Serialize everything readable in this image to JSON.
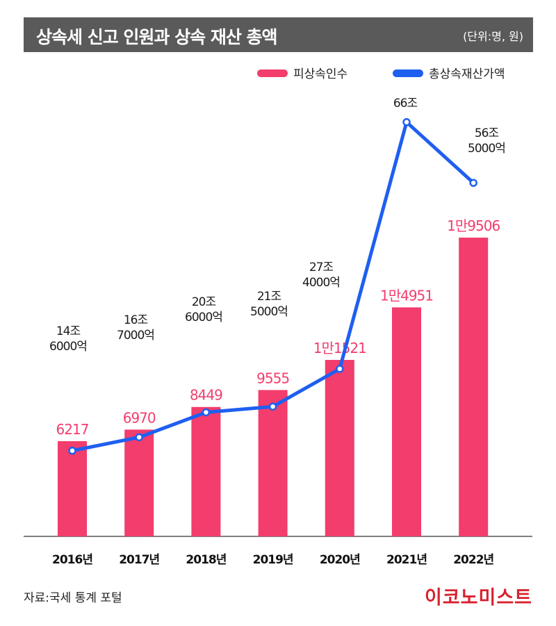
{
  "header": {
    "title": "상속세 신고 인원과 상속 재산 총액",
    "unit": "(단위:명, 원)"
  },
  "legend": [
    {
      "label": "피상속인수",
      "color": "#f23d6d"
    },
    {
      "label": "총상속재산가액",
      "color": "#1f5ff0"
    }
  ],
  "chart_data": {
    "type": "bar",
    "categories": [
      "2016년",
      "2017년",
      "2018년",
      "2019년",
      "2020년",
      "2021년",
      "2022년"
    ],
    "series": [
      {
        "name": "피상속인수",
        "type": "bar",
        "color": "#f23d6d",
        "values": [
          6217,
          6970,
          8449,
          9555,
          11521,
          14951,
          19506
        ],
        "labels": [
          "6217",
          "6970",
          "8449",
          "9555",
          "1만1521",
          "1만4951",
          "1만9506"
        ]
      },
      {
        "name": "총상속재산가액",
        "type": "line",
        "color": "#1f5ff0",
        "values_trillion_won": [
          14.6,
          16.7,
          20.6,
          21.5,
          27.4,
          66,
          56.5
        ],
        "labels": [
          [
            "14조",
            "6000억"
          ],
          [
            "16조",
            "7000억"
          ],
          [
            "20조",
            "6000억"
          ],
          [
            "21조",
            "5000억"
          ],
          [
            "27조",
            "4000억"
          ],
          [
            "66조"
          ],
          [
            "56조",
            "5000억"
          ]
        ]
      }
    ],
    "bar_ylim": [
      0,
      28000
    ],
    "line_ylim": [
      0,
      80
    ],
    "grid": false,
    "legend_position": "top-right"
  },
  "footer": {
    "source": "자료:국세 통계 포털",
    "logo": "이코노미스트"
  }
}
